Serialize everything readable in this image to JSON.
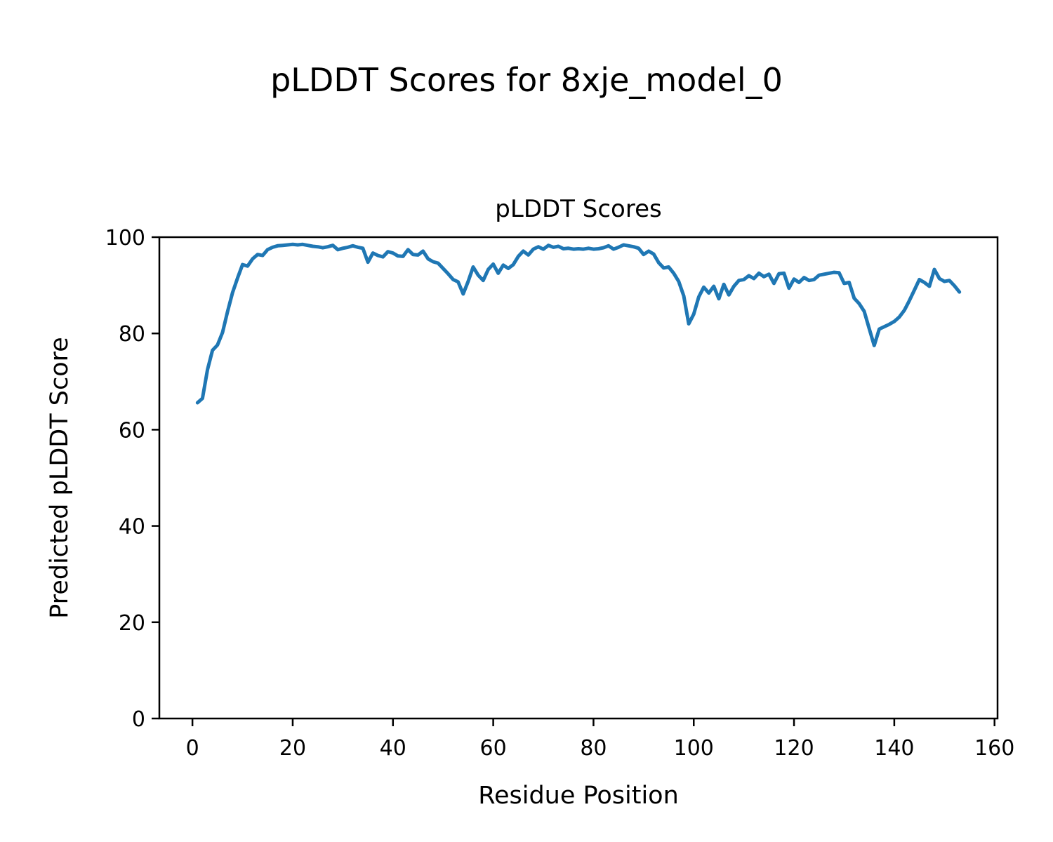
{
  "figure": {
    "suptitle": "pLDDT Scores for 8xje_model_0"
  },
  "colors": {
    "line": "#1f77b4",
    "axes": "#000000",
    "background": "#ffffff"
  },
  "chart_data": {
    "type": "line",
    "title": "pLDDT Scores",
    "xlabel": "Residue Position",
    "ylabel": "Predicted pLDDT Score",
    "x_ticks": [
      0,
      20,
      40,
      60,
      80,
      100,
      120,
      140,
      160
    ],
    "y_ticks": [
      0,
      20,
      40,
      60,
      80,
      100
    ],
    "xlim": [
      -6.6,
      160.6
    ],
    "ylim": [
      0,
      100
    ],
    "grid": false,
    "legend": "none",
    "series": [
      {
        "name": "pLDDT",
        "x_start": 1,
        "x_step": 1,
        "values": [
          65.6,
          66.5,
          72.5,
          76.5,
          77.6,
          80.2,
          84.5,
          88.5,
          91.5,
          94.3,
          94.0,
          95.5,
          96.4,
          96.2,
          97.4,
          97.9,
          98.2,
          98.3,
          98.4,
          98.5,
          98.4,
          98.5,
          98.3,
          98.1,
          98.0,
          97.8,
          98.0,
          98.3,
          97.4,
          97.7,
          97.9,
          98.2,
          97.9,
          97.7,
          94.8,
          96.7,
          96.2,
          95.9,
          97.0,
          96.7,
          96.1,
          96.0,
          97.4,
          96.4,
          96.3,
          97.1,
          95.5,
          94.9,
          94.6,
          93.5,
          92.4,
          91.2,
          90.7,
          88.2,
          90.8,
          93.8,
          92.1,
          91.0,
          93.3,
          94.4,
          92.5,
          94.2,
          93.5,
          94.3,
          96.0,
          97.1,
          96.3,
          97.5,
          98.0,
          97.5,
          98.3,
          97.9,
          98.1,
          97.6,
          97.7,
          97.5,
          97.6,
          97.5,
          97.7,
          97.5,
          97.6,
          97.8,
          98.2,
          97.5,
          97.9,
          98.4,
          98.2,
          98.0,
          97.7,
          96.4,
          97.1,
          96.5,
          94.7,
          93.6,
          93.8,
          92.5,
          90.8,
          87.8,
          82.0,
          84.0,
          87.6,
          89.6,
          88.4,
          89.8,
          87.2,
          90.2,
          88.0,
          89.8,
          91.0,
          91.2,
          92.0,
          91.4,
          92.5,
          91.8,
          92.3,
          90.4,
          92.4,
          92.5,
          89.4,
          91.3,
          90.6,
          91.6,
          91.0,
          91.2,
          92.1,
          92.3,
          92.5,
          92.7,
          92.6,
          90.4,
          90.6,
          87.3,
          86.2,
          84.6,
          81.0,
          77.5,
          80.9,
          81.4,
          81.9,
          82.5,
          83.4,
          84.8,
          86.8,
          89.0,
          91.2,
          90.6,
          89.8,
          93.3,
          91.4,
          90.8,
          91.0,
          89.9,
          88.6
        ]
      }
    ]
  }
}
